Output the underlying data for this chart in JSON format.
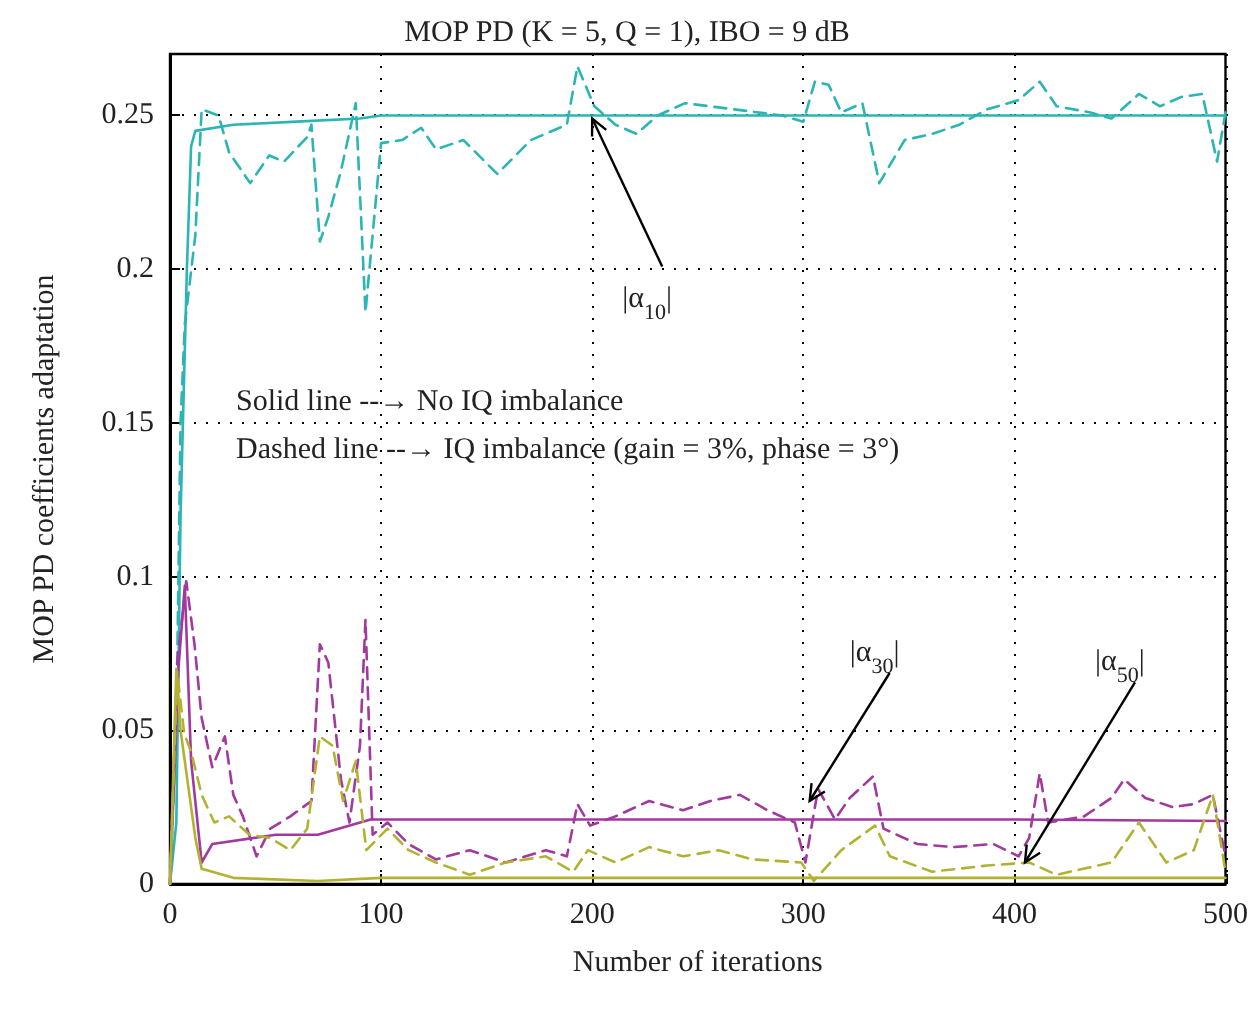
{
  "chart_data": {
    "type": "line",
    "title": "MOP PD (K = 5, Q = 1), IBO = 9 dB",
    "xlabel": "Number of iterations",
    "ylabel": "MOP PD coefficients adaptation",
    "xlim": [
      0,
      500
    ],
    "xticks": [
      0,
      100,
      200,
      300,
      400,
      500
    ],
    "ylim": [
      0,
      0.27
    ],
    "yticks": [
      0,
      0.05,
      0.1,
      0.15,
      0.2,
      0.25
    ],
    "grid": true,
    "marker": "none",
    "series": [
      {
        "color": "#2bb5b3",
        "line_style": "solid",
        "x": [
          0,
          3,
          5,
          8,
          10,
          12,
          30,
          60,
          90,
          100,
          200,
          300,
          400,
          500
        ],
        "values": [
          0,
          0.02,
          0.12,
          0.2,
          0.24,
          0.245,
          0.247,
          0.248,
          0.249,
          0.25,
          0.25,
          0.25,
          0.25,
          0.25
        ]
      },
      {
        "color": "#2bb5b3",
        "line_style": "dashed",
        "x": [
          0,
          3,
          5,
          7,
          12,
          15,
          23,
          28,
          38,
          47,
          54,
          65,
          67,
          71,
          75,
          81,
          88,
          92.6,
          100,
          110,
          119,
          126,
          139,
          155,
          171,
          188,
          193,
          201,
          211,
          221,
          231,
          244,
          267,
          290,
          300,
          305.5,
          312,
          318,
          328,
          336,
          348,
          361,
          374,
          387,
          402,
          412,
          420,
          436,
          446,
          459,
          469,
          479,
          489,
          496,
          500
        ],
        "values": [
          0,
          0.05,
          0.15,
          0.182,
          0.211,
          0.252,
          0.25,
          0.238,
          0.228,
          0.237,
          0.235,
          0.243,
          0.247,
          0.209,
          0.217,
          0.232,
          0.254,
          0.186,
          0.241,
          0.242,
          0.246,
          0.239,
          0.242,
          0.231,
          0.242,
          0.247,
          0.266,
          0.253,
          0.247,
          0.244,
          0.25,
          0.254,
          0.252,
          0.25,
          0.248,
          0.261,
          0.26,
          0.251,
          0.254,
          0.228,
          0.242,
          0.244,
          0.247,
          0.252,
          0.255,
          0.261,
          0.253,
          0.251,
          0.249,
          0.257,
          0.253,
          0.256,
          0.257,
          0.235,
          0.251
        ]
      },
      {
        "color": "#a2399e",
        "line_style": "solid",
        "x": [
          0,
          4,
          7,
          10,
          15,
          20,
          50,
          70,
          95,
          100,
          200,
          300,
          400,
          500
        ],
        "values": [
          0,
          0.07,
          0.097,
          0.04,
          0.007,
          0.013,
          0.016,
          0.016,
          0.021,
          0.021,
          0.021,
          0.021,
          0.021,
          0.0205
        ]
      },
      {
        "color": "#a2399e",
        "line_style": "dashed",
        "x": [
          0,
          3.4,
          7.7,
          11.6,
          15,
          20,
          26,
          30,
          34.5,
          41,
          47.5,
          57,
          67,
          71,
          75,
          81,
          85,
          90,
          92.6,
          96,
          103,
          113,
          126,
          142,
          159,
          178,
          188,
          193,
          199,
          211,
          227,
          243,
          256,
          270,
          283,
          296,
          301,
          307,
          315,
          322,
          333,
          338,
          354,
          371,
          390,
          402,
          407,
          412,
          416,
          433,
          446,
          452,
          462,
          475,
          485,
          494,
          500
        ],
        "values": [
          0,
          0.072,
          0.0985,
          0.078,
          0.054,
          0.038,
          0.048,
          0.029,
          0.022,
          0.009,
          0.018,
          0.022,
          0.027,
          0.078,
          0.072,
          0.034,
          0.02,
          0.045,
          0.086,
          0.016,
          0.02,
          0.013,
          0.008,
          0.011,
          0.007,
          0.011,
          0.009,
          0.026,
          0.019,
          0.022,
          0.027,
          0.024,
          0.027,
          0.029,
          0.024,
          0.02,
          0.007,
          0.031,
          0.021,
          0.028,
          0.035,
          0.018,
          0.013,
          0.012,
          0.013,
          0.009,
          0.015,
          0.036,
          0.02,
          0.022,
          0.028,
          0.034,
          0.028,
          0.025,
          0.026,
          0.029,
          0.009
        ]
      },
      {
        "color": "#b2b232",
        "line_style": "solid",
        "x": [
          0,
          3,
          5,
          8,
          12,
          15,
          30,
          70,
          100,
          200,
          300,
          400,
          500
        ],
        "values": [
          0,
          0.07,
          0.05,
          0.035,
          0.015,
          0.005,
          0.002,
          0.001,
          0.002,
          0.002,
          0.002,
          0.002,
          0.002
        ]
      },
      {
        "color": "#b2b232",
        "line_style": "dashed",
        "x": [
          0,
          3.4,
          6.7,
          10,
          15,
          21,
          28,
          37.7,
          47.5,
          57,
          65,
          71,
          77,
          82,
          88,
          93,
          103,
          113,
          126,
          142,
          159,
          178,
          191,
          198,
          211,
          227,
          243,
          260,
          276,
          299,
          305,
          318,
          334,
          341,
          361,
          387,
          407,
          420,
          446,
          459,
          472,
          485,
          494,
          500
        ],
        "values": [
          0,
          0.069,
          0.049,
          0.043,
          0.029,
          0.02,
          0.022,
          0.016,
          0.015,
          0.011,
          0.018,
          0.048,
          0.045,
          0.027,
          0.04,
          0.011,
          0.018,
          0.011,
          0.007,
          0.003,
          0.007,
          0.009,
          0.004,
          0.011,
          0.007,
          0.012,
          0.009,
          0.011,
          0.008,
          0.007,
          0.001,
          0.011,
          0.019,
          0.009,
          0.004,
          0.006,
          0.007,
          0.003,
          0.007,
          0.02,
          0.007,
          0.011,
          0.029,
          0.004
        ]
      }
    ],
    "annotations": [
      "Solid line --→ No IQ imbalance",
      "Dashed line --→ IQ imbalance (gain = 3%, phase = 3°)",
      {
        "text": "|α$_{10}$|",
        "x": 200,
        "y": 0.249
      },
      {
        "text": "|α$_{30}$|",
        "x": 303,
        "y": 0.027
      },
      {
        "text": "|α$_{50}$|",
        "x": 405,
        "y": 0.007
      }
    ]
  }
}
